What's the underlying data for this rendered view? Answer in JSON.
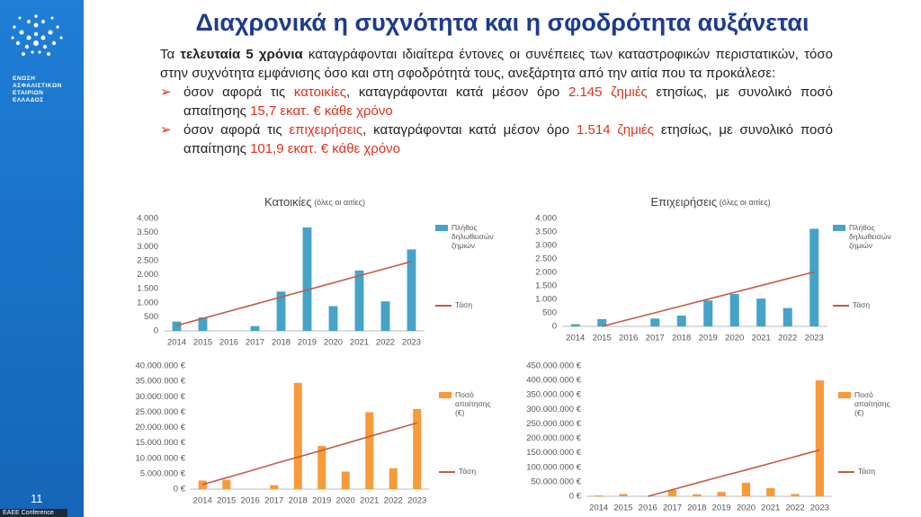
{
  "sidebar": {
    "org": [
      "ΕΝΩΣΗ",
      "ΑΣΦΑΛΙΣΤΙΚΩΝ",
      "ΕΤΑΙΡΙΩΝ",
      "ΕΛΛΑΔΟΣ"
    ],
    "page_number": "11",
    "footer": "EAEE Conference"
  },
  "header": {
    "title": "Διαχρονικά η συχνότητα και η σφοδρότητα αυξάνεται"
  },
  "intro": [
    "Τα ",
    "τελευταία 5 χρόνια",
    " καταγράφονται ιδιαίτερα έντονες οι συνέπειες των καταστροφικών περιστατικών, τόσο στην συχνότητα εμφάνισης όσο και στη σφοδρότητά τους, ανεξάρτητα από την αιτία που τα προκάλεσε:"
  ],
  "bullets": [
    [
      "όσον αφορά τις ",
      "κατοικίες",
      ", καταγράφονται κατά μέσον όρο ",
      "2.145 ζημιές",
      " ετησίως, με συνολικό ποσό απαίτησης ",
      "15,7  εκατ. € κάθε χρόνο"
    ],
    [
      "όσον αφορά τις ",
      "επιχειρήσεις",
      ", καταγράφονται κατά μέσον όρο ",
      "1.514 ζημιές",
      " ετησίως, με συνολικό ποσό απαίτησης ",
      "101,9  εκατ. € κάθε χρόνο"
    ]
  ],
  "chart_data": [
    {
      "type": "bar",
      "title": "Κατοικίες",
      "subtitle": "(όλες οι αιτίες)",
      "categories": [
        "2014",
        "2015",
        "2016",
        "2017",
        "2018",
        "2019",
        "2020",
        "2021",
        "2022",
        "2023"
      ],
      "series": [
        {
          "name": "Πλήθος δηλωθεισών ζημιών",
          "color": "#45a3c9",
          "values": [
            330,
            480,
            0,
            170,
            1400,
            3680,
            880,
            2150,
            1050,
            2900
          ]
        },
        {
          "name": "Τάση",
          "color": "#c55a45",
          "type": "line",
          "values": [
            190,
            443,
            697,
            950,
            1203,
            1457,
            1710,
            1963,
            2217,
            2470
          ]
        }
      ],
      "ylim": [
        0,
        4000
      ],
      "yticks": [
        0,
        500,
        {
          "value": 1000,
          "label": "1.000"
        },
        {
          "value": 1500,
          "label": "1.500"
        },
        {
          "value": 2000,
          "label": "2.000"
        },
        {
          "value": 2500,
          "label": "2.500"
        },
        {
          "value": 3000,
          "label": "3.000"
        },
        {
          "value": 3500,
          "label": "3.500"
        },
        {
          "value": 4000,
          "label": "4.000"
        }
      ],
      "grid": false,
      "legend": "right"
    },
    {
      "type": "bar",
      "title": "Επιχειρήσεις",
      "subtitle": "(όλες οι αιτίες)",
      "categories": [
        "2014",
        "2015",
        "2016",
        "2017",
        "2018",
        "2019",
        "2020",
        "2021",
        "2022",
        "2023"
      ],
      "series": [
        {
          "name": "Πλήθος δηλωθεισών ζημιών",
          "color": "#45a3c9",
          "values": [
            80,
            270,
            0,
            290,
            400,
            960,
            1200,
            1030,
            680,
            3620
          ]
        },
        {
          "name": "Τάση",
          "color": "#c55a45",
          "type": "line",
          "values": [
            null,
            0,
            253,
            505,
            758,
            1010,
            1263,
            1515,
            1768,
            2020
          ]
        }
      ],
      "ylim": [
        0,
        4000
      ],
      "yticks": [
        0,
        500,
        {
          "value": 1000,
          "label": "1.000"
        },
        {
          "value": 1500,
          "label": "1.500"
        },
        {
          "value": 2000,
          "label": "2.000"
        },
        {
          "value": 2500,
          "label": "2.500"
        },
        {
          "value": 3000,
          "label": "3.000"
        },
        {
          "value": 3500,
          "label": "3.500"
        },
        {
          "value": 4000,
          "label": "4.000"
        }
      ],
      "grid": false,
      "legend": "right"
    },
    {
      "type": "bar",
      "categories": [
        "2014",
        "2015",
        "2016",
        "2017",
        "2018",
        "2019",
        "2020",
        "2021",
        "2022",
        "2023"
      ],
      "series": [
        {
          "name": "Ποσό απαίτησης (€)",
          "color": "#f79a3a",
          "values": [
            2800000,
            3000000,
            0,
            1300000,
            34500000,
            14000000,
            5700000,
            25000000,
            6800000,
            26000000
          ]
        },
        {
          "name": "Τάση",
          "color": "#c55a45",
          "type": "line",
          "values": [
            1500000,
            3700000,
            5900000,
            8200000,
            10400000,
            12600000,
            14800000,
            17100000,
            19300000,
            21500000
          ]
        }
      ],
      "ylim": [
        0,
        40000000
      ],
      "yticks": [
        {
          "value": 0,
          "label": "0 €"
        },
        {
          "value": 5000000,
          "label": "5.000.000 €"
        },
        {
          "value": 10000000,
          "label": "10.000.000 €"
        },
        {
          "value": 15000000,
          "label": "15.000.000 €"
        },
        {
          "value": 20000000,
          "label": "20.000.000 €"
        },
        {
          "value": 25000000,
          "label": "25.000.000 €"
        },
        {
          "value": 30000000,
          "label": "30.000.000 €"
        },
        {
          "value": 35000000,
          "label": "35.000.000 €"
        },
        {
          "value": 40000000,
          "label": "40.000.000 €"
        }
      ],
      "grid": false,
      "legend": "right"
    },
    {
      "type": "bar",
      "categories": [
        "2014",
        "2015",
        "2016",
        "2017",
        "2018",
        "2019",
        "2020",
        "2021",
        "2022",
        "2023"
      ],
      "series": [
        {
          "name": "Ποσό απαίτησης (€)",
          "color": "#f79a3a",
          "values": [
            3000000,
            8000000,
            0,
            22000000,
            7000000,
            15000000,
            47000000,
            28000000,
            8000000,
            400000000
          ]
        },
        {
          "name": "Τάση",
          "color": "#c55a45",
          "type": "line",
          "values": [
            null,
            null,
            0,
            23000000,
            46000000,
            69000000,
            91000000,
            114000000,
            137000000,
            160000000
          ]
        }
      ],
      "ylim": [
        0,
        450000000
      ],
      "yticks": [
        {
          "value": 0,
          "label": "0 €"
        },
        {
          "value": 50000000,
          "label": "50.000.000 €"
        },
        {
          "value": 100000000,
          "label": "100.000.000 €"
        },
        {
          "value": 150000000,
          "label": "150.000.000 €"
        },
        {
          "value": 200000000,
          "label": "200.000.000 €"
        },
        {
          "value": 250000000,
          "label": "250.000.000 €"
        },
        {
          "value": 300000000,
          "label": "300.000.000 €"
        },
        {
          "value": 350000000,
          "label": "350.000.000 €"
        },
        {
          "value": 400000000,
          "label": "400.000.000 €"
        },
        {
          "value": 450000000,
          "label": "450.000.000 €"
        }
      ],
      "grid": false,
      "legend": "right"
    }
  ]
}
